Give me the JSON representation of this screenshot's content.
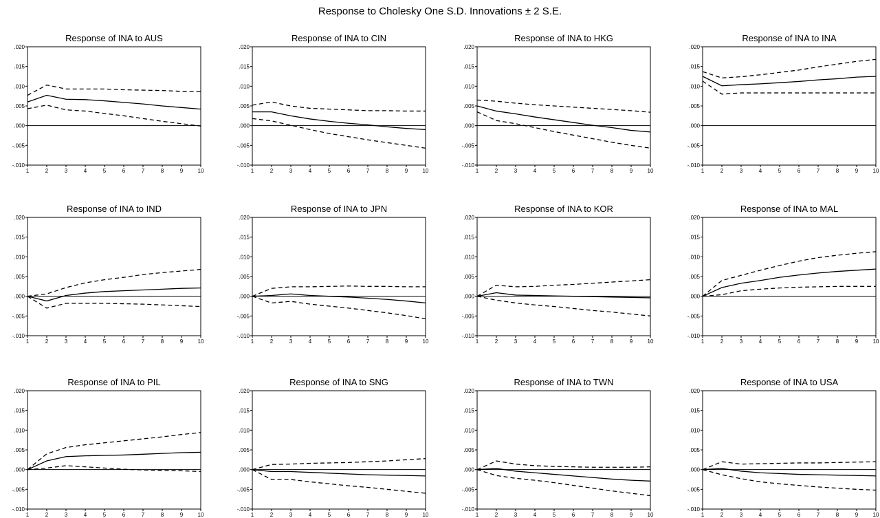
{
  "title": "Response to Cholesky One S.D. Innovations ± 2 S.E.",
  "chart_data": {
    "type": "line",
    "title": "Response to Cholesky One S.D. Innovations ± 2 S.E.",
    "x": [
      1,
      2,
      3,
      4,
      5,
      6,
      7,
      8,
      9,
      10
    ],
    "x_tick_labels": [
      "1",
      "2",
      "3",
      "4",
      "5",
      "6",
      "7",
      "8",
      "9",
      "10"
    ],
    "ylim": [
      -0.01,
      0.02
    ],
    "y_tick_labels": [
      ".020",
      ".015",
      ".010",
      ".005",
      ".000",
      "-.005",
      "-.010"
    ],
    "y_ticks": [
      0.02,
      0.015,
      0.01,
      0.005,
      0.0,
      -0.005,
      -0.01
    ],
    "grid": false,
    "panels": [
      {
        "title": "Response of INA to AUS",
        "response": [
          0.006,
          0.0077,
          0.0067,
          0.0066,
          0.0063,
          0.0059,
          0.0055,
          0.005,
          0.0046,
          0.0042
        ],
        "upper": [
          0.0077,
          0.0103,
          0.0093,
          0.0093,
          0.0093,
          0.0091,
          0.009,
          0.0089,
          0.0087,
          0.0086
        ],
        "lower": [
          0.0043,
          0.0052,
          0.004,
          0.0037,
          0.0031,
          0.0025,
          0.0018,
          0.0011,
          0.0005,
          -0.0001
        ]
      },
      {
        "title": "Response of INA to CIN",
        "response": [
          0.0035,
          0.0035,
          0.0025,
          0.0017,
          0.0011,
          0.0006,
          0.0002,
          -0.0003,
          -0.0007,
          -0.001
        ],
        "upper": [
          0.0052,
          0.006,
          0.005,
          0.0044,
          0.0042,
          0.004,
          0.0038,
          0.0038,
          0.0037,
          0.0037
        ],
        "lower": [
          0.0018,
          0.0012,
          0.0001,
          -0.001,
          -0.002,
          -0.0028,
          -0.0036,
          -0.0043,
          -0.005,
          -0.0057
        ]
      },
      {
        "title": "Response of INA to HKG",
        "response": [
          0.005,
          0.0037,
          0.003,
          0.0022,
          0.0015,
          0.0008,
          0.0001,
          -0.0005,
          -0.0012,
          -0.0016
        ],
        "upper": [
          0.0065,
          0.0062,
          0.0057,
          0.0053,
          0.005,
          0.0047,
          0.0044,
          0.0041,
          0.0038,
          0.0034
        ],
        "lower": [
          0.0035,
          0.0013,
          0.0005,
          -0.0005,
          -0.0015,
          -0.0024,
          -0.0033,
          -0.0042,
          -0.005,
          -0.0057
        ]
      },
      {
        "title": "Response of INA to INA",
        "response": [
          0.0125,
          0.0101,
          0.0104,
          0.0106,
          0.0109,
          0.0112,
          0.0116,
          0.0119,
          0.0123,
          0.0125
        ],
        "upper": [
          0.0137,
          0.0121,
          0.0124,
          0.0129,
          0.0135,
          0.0141,
          0.0149,
          0.0156,
          0.0163,
          0.0168
        ],
        "lower": [
          0.0113,
          0.008,
          0.0083,
          0.0083,
          0.0083,
          0.0083,
          0.0083,
          0.0083,
          0.0083,
          0.0083
        ]
      },
      {
        "title": "Response of INA to IND",
        "response": [
          0.0,
          -0.0012,
          0.0002,
          0.0008,
          0.0012,
          0.0014,
          0.0016,
          0.0018,
          0.002,
          0.0021
        ],
        "upper": [
          0.0,
          0.0006,
          0.0022,
          0.0034,
          0.0042,
          0.0048,
          0.0055,
          0.006,
          0.0064,
          0.0068
        ],
        "lower": [
          0.0,
          -0.003,
          -0.0018,
          -0.0018,
          -0.0018,
          -0.0019,
          -0.002,
          -0.0022,
          -0.0024,
          -0.0026
        ]
      },
      {
        "title": "Response of INA to JPN",
        "response": [
          0.0,
          0.0002,
          0.0006,
          0.0002,
          0.0,
          -0.0002,
          -0.0005,
          -0.0008,
          -0.0012,
          -0.0017
        ],
        "upper": [
          0.0,
          0.002,
          0.0024,
          0.0024,
          0.0025,
          0.0026,
          0.0025,
          0.0025,
          0.0024,
          0.0024
        ],
        "lower": [
          0.0,
          -0.0017,
          -0.0013,
          -0.002,
          -0.0025,
          -0.003,
          -0.0036,
          -0.0042,
          -0.0049,
          -0.0057
        ]
      },
      {
        "title": "Response of INA to KOR",
        "response": [
          0.0,
          0.0009,
          0.0003,
          0.0002,
          0.0001,
          0.0,
          -0.0001,
          -0.0002,
          -0.0003,
          -0.0004
        ],
        "upper": [
          0.0,
          0.0028,
          0.0024,
          0.0025,
          0.0028,
          0.003,
          0.0033,
          0.0036,
          0.0039,
          0.0042
        ],
        "lower": [
          0.0,
          -0.001,
          -0.0017,
          -0.0022,
          -0.0026,
          -0.0031,
          -0.0036,
          -0.004,
          -0.0045,
          -0.005
        ]
      },
      {
        "title": "Response of INA to MAL",
        "response": [
          0.0,
          0.0022,
          0.0033,
          0.004,
          0.0048,
          0.0054,
          0.0059,
          0.0063,
          0.0066,
          0.0069
        ],
        "upper": [
          0.0,
          0.004,
          0.0053,
          0.0066,
          0.0078,
          0.0089,
          0.0098,
          0.0104,
          0.0109,
          0.0113
        ],
        "lower": [
          0.0,
          0.0004,
          0.0014,
          0.0018,
          0.0021,
          0.0023,
          0.0024,
          0.0025,
          0.0025,
          0.0025
        ]
      },
      {
        "title": "Response of INA to PIL",
        "response": [
          0.0,
          0.0022,
          0.0033,
          0.0035,
          0.0036,
          0.0037,
          0.0039,
          0.0041,
          0.0043,
          0.0044
        ],
        "upper": [
          0.0,
          0.004,
          0.0056,
          0.0063,
          0.0068,
          0.0073,
          0.0078,
          0.0083,
          0.0089,
          0.0094
        ],
        "lower": [
          0.0,
          0.0004,
          0.001,
          0.0007,
          0.0004,
          0.0001,
          -0.0001,
          -0.0002,
          -0.0003,
          -0.0005
        ]
      },
      {
        "title": "Response of INA to SNG",
        "response": [
          0.0,
          -0.0005,
          -0.0005,
          -0.0007,
          -0.0009,
          -0.0011,
          -0.0013,
          -0.0014,
          -0.0015,
          -0.0016
        ],
        "upper": [
          0.0,
          0.0013,
          0.0014,
          0.0016,
          0.0017,
          0.0018,
          0.002,
          0.0022,
          0.0025,
          0.0028
        ],
        "lower": [
          0.0,
          -0.0025,
          -0.0025,
          -0.0031,
          -0.0036,
          -0.0041,
          -0.0045,
          -0.005,
          -0.0055,
          -0.006
        ]
      },
      {
        "title": "Response of INA to TWN",
        "response": [
          0.0,
          0.0003,
          -0.0004,
          -0.0008,
          -0.0012,
          -0.0016,
          -0.002,
          -0.0024,
          -0.0027,
          -0.0029
        ],
        "upper": [
          0.0,
          0.0022,
          0.0014,
          0.001,
          0.0008,
          0.0007,
          0.0006,
          0.0006,
          0.0006,
          0.0007
        ],
        "lower": [
          0.0,
          -0.0015,
          -0.0022,
          -0.0027,
          -0.0033,
          -0.004,
          -0.0047,
          -0.0054,
          -0.006,
          -0.0066
        ]
      },
      {
        "title": "Response of INA to USA",
        "response": [
          0.0,
          0.0003,
          -0.0004,
          -0.0008,
          -0.001,
          -0.0012,
          -0.0013,
          -0.0014,
          -0.0015,
          -0.0016
        ],
        "upper": [
          0.0,
          0.002,
          0.0014,
          0.0015,
          0.0016,
          0.0017,
          0.0017,
          0.0018,
          0.0019,
          0.002
        ],
        "lower": [
          0.0,
          -0.0013,
          -0.0023,
          -0.0031,
          -0.0036,
          -0.004,
          -0.0044,
          -0.0047,
          -0.005,
          -0.0052
        ]
      }
    ]
  }
}
